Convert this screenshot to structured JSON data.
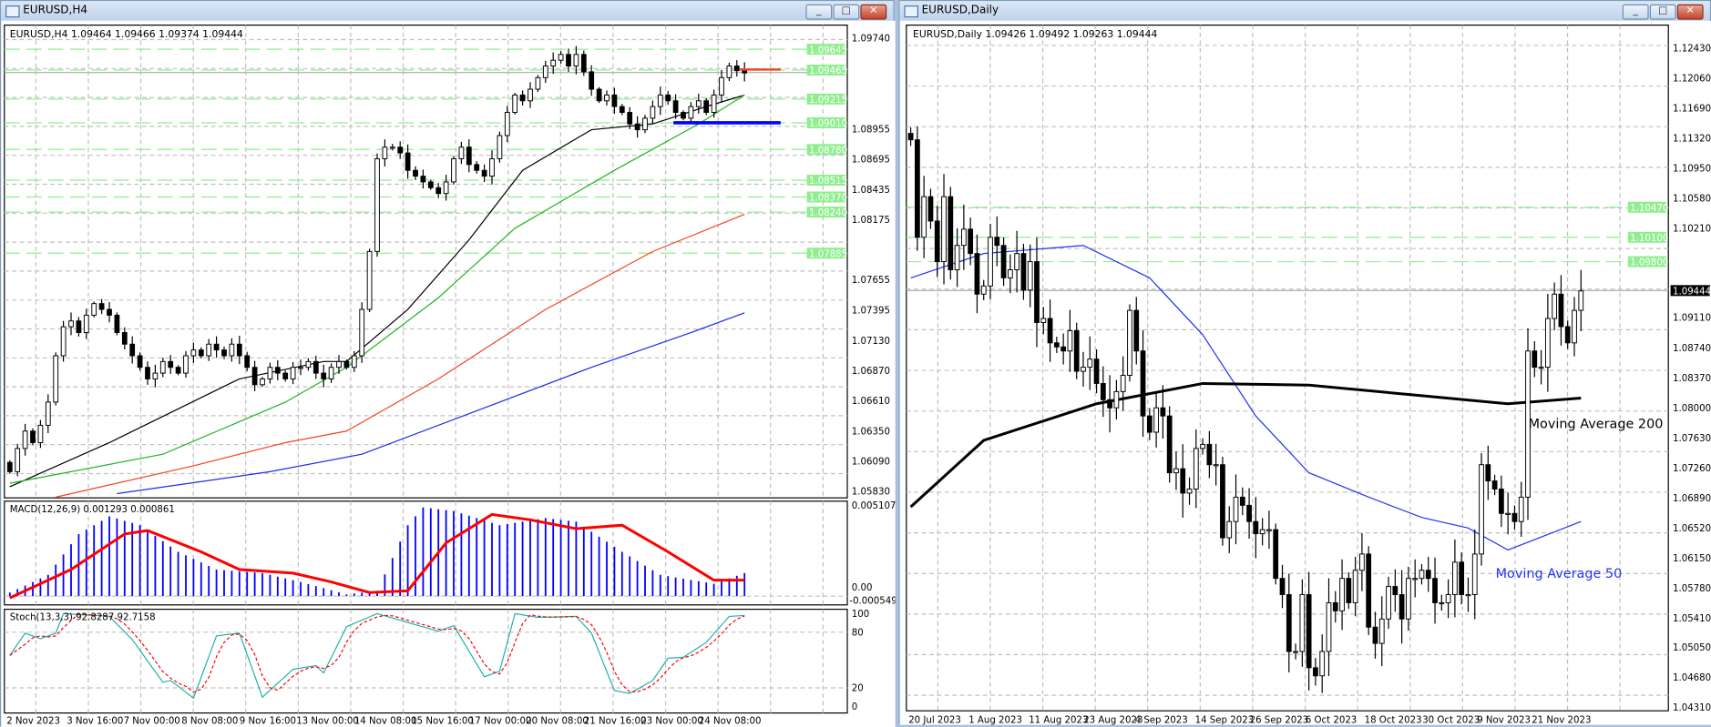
{
  "left_window": {
    "title": "EURUSD,H4",
    "header": "EURUSD,H4  1.09464 1.09466 1.09374 1.09444",
    "axis_ticks": [
      "1.09740",
      "1.08955",
      "1.08695",
      "1.08435",
      "1.08175",
      "1.07655",
      "1.07395",
      "1.07130",
      "1.06870",
      "1.06610",
      "1.06350",
      "1.06090",
      "1.05830"
    ],
    "level_lines": [
      "1.09645",
      "1.09465",
      "1.09215",
      "1.09010",
      "1.08780",
      "1.08515",
      "1.08370",
      "1.08240",
      "1.07885"
    ],
    "bid": "1.09444",
    "red_level": 1.0947,
    "blue_level": 1.0901,
    "x_labels": [
      "2 Nov 2023",
      "3 Nov 16:00",
      "7 Nov 00:00",
      "8 Nov 08:00",
      "9 Nov 16:00",
      "13 Nov 00:00",
      "14 Nov 08:00",
      "15 Nov 16:00",
      "17 Nov 00:00",
      "20 Nov 08:00",
      "21 Nov 16:00",
      "23 Nov 00:00",
      "24 Nov 08:00"
    ],
    "closes": [
      1.06,
      1.062,
      1.0635,
      1.0625,
      1.064,
      1.066,
      1.07,
      1.0725,
      1.073,
      1.072,
      1.0735,
      1.0745,
      1.074,
      1.0735,
      1.072,
      1.071,
      1.07,
      1.069,
      1.068,
      1.0685,
      1.0695,
      1.069,
      1.0685,
      1.07,
      1.0705,
      1.07,
      1.071,
      1.0705,
      1.07,
      1.071,
      1.07,
      1.069,
      1.0675,
      1.068,
      1.069,
      1.0685,
      1.068,
      1.069,
      1.069,
      1.0695,
      1.0685,
      1.068,
      1.069,
      1.0695,
      1.069,
      1.07,
      1.074,
      1.079,
      1.087,
      1.088,
      1.088,
      1.0875,
      1.086,
      1.0855,
      1.085,
      1.0845,
      1.084,
      1.085,
      1.087,
      1.088,
      1.0865,
      1.086,
      1.0855,
      1.087,
      1.089,
      1.091,
      1.0925,
      1.092,
      1.093,
      1.094,
      1.095,
      1.0955,
      1.096,
      1.095,
      1.096,
      1.0945,
      1.093,
      1.092,
      1.0925,
      1.0915,
      1.091,
      1.09,
      1.0895,
      1.0905,
      1.0915,
      1.0925,
      1.092,
      1.091,
      1.0905,
      1.0915,
      1.092,
      1.091,
      1.0925,
      1.094,
      1.095,
      1.0946,
      1.0944
    ],
    "moving_averages": [
      {
        "color": "#000000",
        "points": [
          [
            0,
            1.0587
          ],
          [
            13,
            1.0625
          ],
          [
            30,
            1.068
          ],
          [
            41,
            1.0695
          ],
          [
            44,
            1.0695
          ],
          [
            52,
            1.074
          ],
          [
            60,
            1.08
          ],
          [
            67,
            1.086
          ],
          [
            76,
            1.0895
          ],
          [
            84,
            1.09
          ],
          [
            91,
            1.0915
          ],
          [
            96,
            1.0925
          ]
        ]
      },
      {
        "color": "#22b522",
        "points": [
          [
            0,
            1.059
          ],
          [
            20,
            1.0615
          ],
          [
            36,
            1.066
          ],
          [
            44,
            1.069
          ],
          [
            56,
            1.075
          ],
          [
            66,
            1.081
          ],
          [
            79,
            1.086
          ],
          [
            90,
            1.09
          ],
          [
            96,
            1.0925
          ]
        ]
      },
      {
        "color": "#f0461e",
        "points": [
          [
            6,
            1.0578
          ],
          [
            24,
            1.0605
          ],
          [
            36,
            1.0625
          ],
          [
            44,
            1.0635
          ],
          [
            56,
            1.068
          ],
          [
            70,
            1.074
          ],
          [
            84,
            1.079
          ],
          [
            96,
            1.0822
          ]
        ]
      },
      {
        "color": "#1a2ee6",
        "points": [
          [
            14,
            1.0581
          ],
          [
            34,
            1.06
          ],
          [
            46,
            1.0615
          ],
          [
            60,
            1.065
          ],
          [
            76,
            1.069
          ],
          [
            89,
            1.072
          ],
          [
            96,
            1.0737
          ]
        ]
      }
    ],
    "macd": {
      "label": "MACD(12,26,9) 0.001293 0.000861",
      "axis_max": "0.005107",
      "axis_min": "-0.000549",
      "axis_zero": "0.00",
      "histogram": [
        [
          0,
          0.0002
        ],
        [
          5,
          0.0012
        ],
        [
          9,
          0.0035
        ],
        [
          13,
          0.0045
        ],
        [
          17,
          0.004
        ],
        [
          22,
          0.0025
        ],
        [
          27,
          0.0015
        ],
        [
          33,
          0.0013
        ],
        [
          38,
          0.0008
        ],
        [
          44,
          0.0001
        ],
        [
          48,
          0.0003
        ],
        [
          52,
          0.004
        ],
        [
          54,
          0.005
        ],
        [
          58,
          0.0048
        ],
        [
          64,
          0.004
        ],
        [
          70,
          0.0044
        ],
        [
          74,
          0.0042
        ],
        [
          80,
          0.0025
        ],
        [
          85,
          0.0012
        ],
        [
          92,
          0.0007
        ],
        [
          96,
          0.0013
        ]
      ],
      "signal": [
        [
          0,
          -0.0001
        ],
        [
          8,
          0.0015
        ],
        [
          15,
          0.0035
        ],
        [
          18,
          0.0037
        ],
        [
          25,
          0.0025
        ],
        [
          30,
          0.0015
        ],
        [
          37,
          0.0013
        ],
        [
          42,
          0.0008
        ],
        [
          47,
          0.0002
        ],
        [
          52,
          0.0003
        ],
        [
          57,
          0.003
        ],
        [
          63,
          0.0046
        ],
        [
          68,
          0.0043
        ],
        [
          74,
          0.0038
        ],
        [
          80,
          0.004
        ],
        [
          86,
          0.0025
        ],
        [
          92,
          0.0009
        ],
        [
          96,
          0.0009
        ]
      ]
    },
    "stoch": {
      "label": "Stoch(13,3,3) 92.8287 92.7158",
      "levels": [
        "100",
        "80",
        "20",
        "0"
      ],
      "main": [
        [
          0,
          55
        ],
        [
          2,
          79
        ],
        [
          4,
          73
        ],
        [
          6,
          79
        ],
        [
          7,
          100
        ],
        [
          13,
          97
        ],
        [
          16,
          72
        ],
        [
          20,
          26
        ],
        [
          21,
          28
        ],
        [
          24,
          9
        ],
        [
          27,
          76
        ],
        [
          30,
          79
        ],
        [
          33,
          10
        ],
        [
          37,
          40
        ],
        [
          40,
          44
        ],
        [
          41,
          36
        ],
        [
          44,
          86
        ],
        [
          48,
          100
        ],
        [
          56,
          81
        ],
        [
          58,
          87
        ],
        [
          62,
          32
        ],
        [
          64,
          38
        ],
        [
          66,
          100
        ],
        [
          69,
          96
        ],
        [
          74,
          97
        ],
        [
          76,
          79
        ],
        [
          79,
          17
        ],
        [
          81,
          14
        ],
        [
          84,
          28
        ],
        [
          86,
          52
        ],
        [
          88,
          53
        ],
        [
          91,
          69
        ],
        [
          94,
          97
        ],
        [
          96,
          98
        ]
      ]
    }
  },
  "right_window": {
    "title": "EURUSD,Daily",
    "header": "EURUSD,Daily  1.09426 1.09492 1.09263 1.09444",
    "axis_ticks": [
      "1.12430",
      "1.12060",
      "1.11690",
      "1.11320",
      "1.10950",
      "1.10580",
      "1.10210",
      "1.09110",
      "1.08740",
      "1.08370",
      "1.08000",
      "1.07630",
      "1.07260",
      "1.06890",
      "1.06520",
      "1.06150",
      "1.05780",
      "1.05410",
      "1.05050",
      "1.04680",
      "1.04310"
    ],
    "level_lines": [
      "1.10470",
      "1.10100",
      "1.09800"
    ],
    "bid": "1.09444",
    "x_labels": [
      "20 Jul 2023",
      "1 Aug 2023",
      "11 Aug 2023",
      "23 Aug 2023",
      "4 Sep 2023",
      "14 Sep 2023",
      "26 Sep 2023",
      "6 Oct 2023",
      "18 Oct 2023",
      "30 Oct 2023",
      "9 Nov 2023",
      "21 Nov 2023"
    ],
    "closes": [
      1.113,
      1.101,
      1.106,
      1.103,
      1.098,
      1.106,
      1.097,
      1.1,
      1.102,
      1.099,
      1.094,
      1.095,
      1.101,
      1.1,
      1.096,
      1.097,
      1.099,
      1.0945,
      1.098,
      1.0905,
      1.091,
      1.088,
      1.0875,
      1.087,
      1.0895,
      1.0845,
      1.085,
      1.086,
      1.083,
      1.081,
      1.08,
      1.082,
      1.084,
      1.092,
      1.087,
      1.079,
      1.077,
      1.08,
      1.079,
      1.072,
      1.0725,
      1.0695,
      1.07,
      1.075,
      1.0755,
      1.073,
      1.073,
      1.064,
      1.066,
      1.069,
      1.068,
      1.066,
      1.0645,
      1.065,
      1.065,
      1.059,
      1.057,
      1.05,
      1.05,
      1.057,
      1.048,
      1.047,
      1.05,
      1.056,
      1.055,
      1.059,
      1.056,
      1.06,
      1.062,
      1.053,
      1.051,
      1.054,
      1.058,
      1.057,
      1.054,
      1.059,
      1.059,
      1.06,
      1.059,
      1.056,
      1.056,
      1.057,
      1.061,
      1.057,
      1.057,
      1.062,
      1.073,
      1.071,
      1.07,
      1.067,
      1.067,
      1.066,
      1.069,
      1.087,
      1.085,
      1.085,
      1.091,
      1.094,
      1.09,
      1.088,
      1.092,
      1.0944
    ],
    "moving_averages": [
      {
        "name": "Moving Average 200",
        "color": "#000000",
        "points": [
          [
            0,
            1.0678
          ],
          [
            11,
            1.076
          ],
          [
            28,
            1.0805
          ],
          [
            44,
            1.083
          ],
          [
            60,
            1.0828
          ],
          [
            77,
            1.0815
          ],
          [
            90,
            1.0805
          ],
          [
            101,
            1.0812
          ]
        ]
      },
      {
        "name": "Moving Average 50",
        "color": "#2233ee",
        "points": [
          [
            0,
            1.096
          ],
          [
            11,
            1.099
          ],
          [
            26,
            1.1
          ],
          [
            36,
            1.096
          ],
          [
            44,
            1.089
          ],
          [
            52,
            1.079
          ],
          [
            60,
            1.072
          ],
          [
            69,
            1.069
          ],
          [
            77,
            1.0665
          ],
          [
            84,
            1.0652
          ],
          [
            90,
            1.0625
          ],
          [
            101,
            1.066
          ]
        ]
      }
    ],
    "annotations": {
      "ma200": "Moving Average 200",
      "ma50": "Moving Average 50"
    }
  },
  "colors": {
    "level_line": "#90ee90",
    "grid": "#c0c0c0",
    "macd_hist": "#0000ff",
    "macd_signal": "#ff0000",
    "stoch_main": "#20b2aa",
    "stoch_signal": "#ff0000"
  }
}
